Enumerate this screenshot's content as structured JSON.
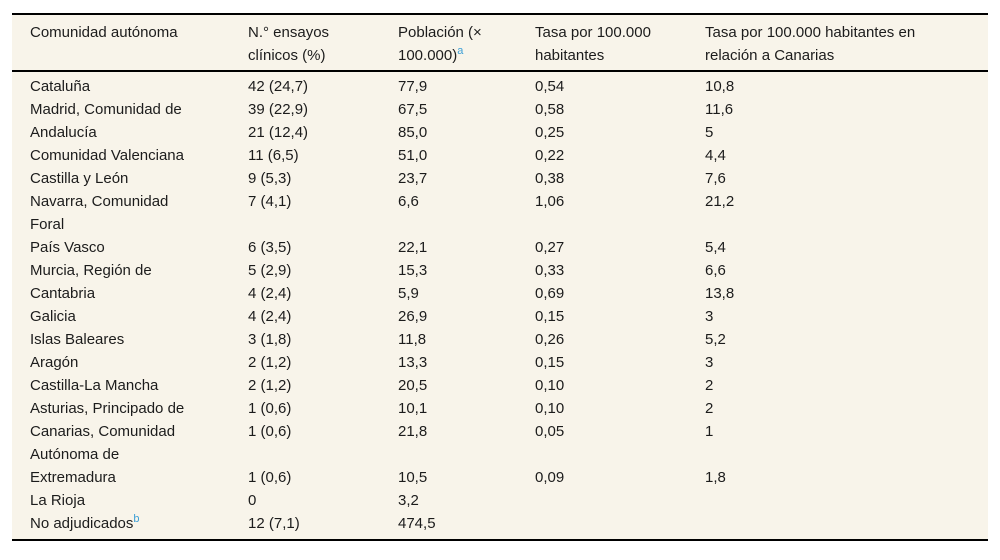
{
  "colors": {
    "page_background": "#ffffff",
    "table_background": "#f8f4ea",
    "text": "#1c1c1c",
    "rule": "#000000",
    "superscript": "#3d9fd6"
  },
  "chart_data": {
    "type": "table",
    "columns": [
      {
        "label": "Comunidad autónoma",
        "sup": ""
      },
      {
        "label": "N.° ensayos\nclínicos (%)",
        "sup": ""
      },
      {
        "label": "Población (×\n100.000)",
        "sup": "a"
      },
      {
        "label": "Tasa por 100.000\nhabitantes",
        "sup": ""
      },
      {
        "label": "Tasa por 100.000 habitantes en\nrelación a Canarias",
        "sup": ""
      }
    ],
    "rows": [
      {
        "sup": "",
        "cells": [
          "Cataluña",
          "42 (24,7)",
          "77,9",
          "0,54",
          "10,8"
        ]
      },
      {
        "sup": "",
        "cells": [
          "Madrid, Comunidad de",
          "39 (22,9)",
          "67,5",
          "0,58",
          "11,6"
        ]
      },
      {
        "sup": "",
        "cells": [
          "Andalucía",
          "21 (12,4)",
          "85,0",
          "0,25",
          "5"
        ]
      },
      {
        "sup": "",
        "cells": [
          "Comunidad Valenciana",
          "11 (6,5)",
          "51,0",
          "0,22",
          "4,4"
        ]
      },
      {
        "sup": "",
        "cells": [
          "Castilla y León",
          "9 (5,3)",
          "23,7",
          "0,38",
          "7,6"
        ]
      },
      {
        "sup": "",
        "cells": [
          "Navarra, Comunidad\nForal",
          "7 (4,1)",
          "6,6",
          "1,06",
          "21,2"
        ]
      },
      {
        "sup": "",
        "cells": [
          "País Vasco",
          "6 (3,5)",
          "22,1",
          "0,27",
          "5,4"
        ]
      },
      {
        "sup": "",
        "cells": [
          "Murcia, Región de",
          "5 (2,9)",
          "15,3",
          "0,33",
          "6,6"
        ]
      },
      {
        "sup": "",
        "cells": [
          "Cantabria",
          "4 (2,4)",
          "5,9",
          "0,69",
          "13,8"
        ]
      },
      {
        "sup": "",
        "cells": [
          "Galicia",
          "4 (2,4)",
          "26,9",
          "0,15",
          "3"
        ]
      },
      {
        "sup": "",
        "cells": [
          "Islas Baleares",
          "3 (1,8)",
          "11,8",
          "0,26",
          "5,2"
        ]
      },
      {
        "sup": "",
        "cells": [
          "Aragón",
          "2 (1,2)",
          "13,3",
          "0,15",
          "3"
        ]
      },
      {
        "sup": "",
        "cells": [
          "Castilla-La Mancha",
          "2 (1,2)",
          "20,5",
          "0,10",
          "2"
        ]
      },
      {
        "sup": "",
        "cells": [
          "Asturias, Principado de",
          "1 (0,6)",
          "10,1",
          "0,10",
          "2"
        ]
      },
      {
        "sup": "",
        "cells": [
          "Canarias, Comunidad\nAutónoma de",
          "1 (0,6)",
          "21,8",
          "0,05",
          "1"
        ]
      },
      {
        "sup": "",
        "cells": [
          "Extremadura",
          "1 (0,6)",
          "10,5",
          "0,09",
          "1,8"
        ]
      },
      {
        "sup": "",
        "cells": [
          "La Rioja",
          "0",
          "3,2",
          "",
          ""
        ]
      },
      {
        "sup": "b",
        "cells": [
          "No adjudicados",
          "12 (7,1)",
          "474,5",
          "",
          ""
        ]
      }
    ]
  }
}
